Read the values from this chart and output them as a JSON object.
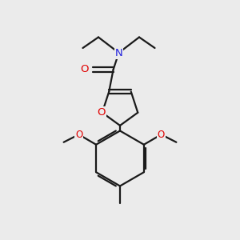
{
  "bg_color": "#ebebeb",
  "bond_color": "#1a1a1a",
  "bond_width": 1.6,
  "atom_colors": {
    "O": "#e00000",
    "N": "#2020dd",
    "C": "#1a1a1a"
  },
  "font_size": 8.5,
  "fig_size": [
    3.0,
    3.0
  ],
  "dpi": 100
}
